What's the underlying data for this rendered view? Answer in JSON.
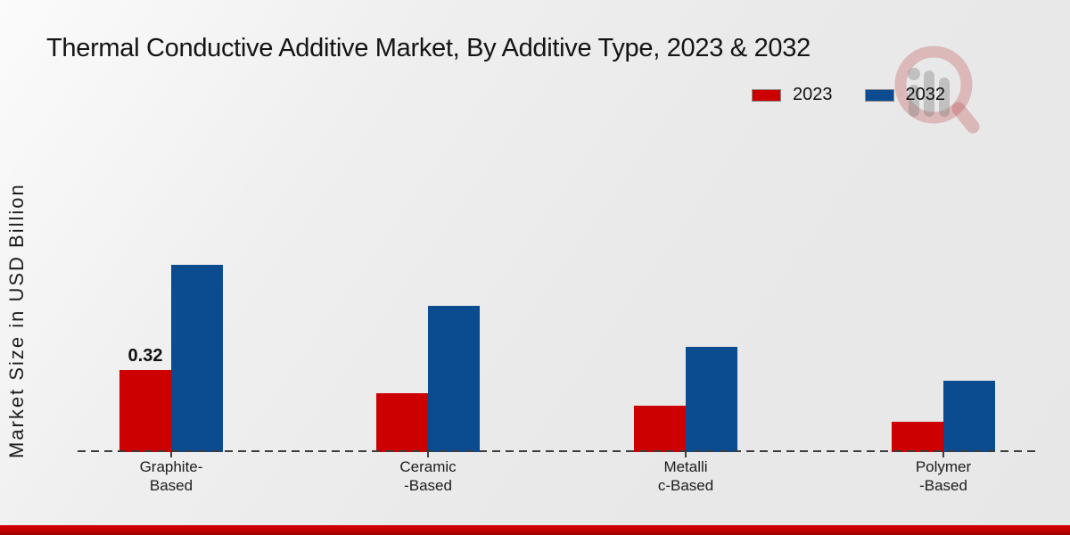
{
  "title": "Thermal Conductive Additive Market, By Additive Type, 2023 & 2032",
  "ylabel": "Market Size in USD Billion",
  "legend": {
    "items": [
      {
        "label": "2023",
        "color": "#cc0000"
      },
      {
        "label": "2032",
        "color": "#0b4b8f"
      }
    ]
  },
  "icons": {
    "watermark": "market-research-future-logo-watermark"
  },
  "colors": {
    "series_2023": "#cc0000",
    "series_2032": "#0b4b8f",
    "footer_band": "#c00000",
    "background": "#ececec",
    "axis": "#3d3d3d"
  },
  "chart_data": {
    "type": "bar",
    "title": "Thermal Conductive Additive Market, By Additive Type, 2023 & 2032",
    "xlabel": "",
    "ylabel": "Market Size in USD Billion",
    "categories": [
      "Graphite-Based",
      "Ceramic-Based",
      "Metallic-Based",
      "Polymer-Based"
    ],
    "category_tick_lines": [
      [
        "Graphite-",
        "Based"
      ],
      [
        "Ceramic",
        "-Based"
      ],
      [
        "Metalli",
        "c-Based"
      ],
      [
        "Polymer",
        "-Based"
      ]
    ],
    "series": [
      {
        "name": "2023",
        "color": "#cc0000",
        "values": [
          0.32,
          0.23,
          0.18,
          0.12
        ]
      },
      {
        "name": "2032",
        "color": "#0b4b8f",
        "values": [
          0.73,
          0.57,
          0.41,
          0.28
        ]
      }
    ],
    "data_labels": [
      {
        "series": "2023",
        "category": "Graphite-Based",
        "text": "0.32"
      }
    ],
    "ylim": [
      0,
      0.8
    ],
    "grid": false,
    "y_axis_ticks_visible": false,
    "baseline_style": "dashed",
    "legend_position": "top-right"
  }
}
